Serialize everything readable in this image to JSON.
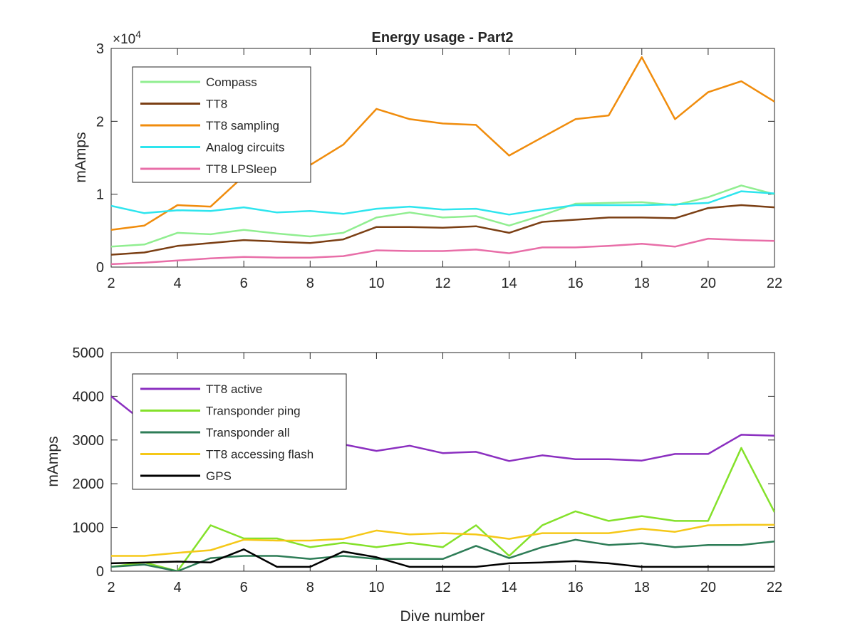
{
  "chart_data": [
    {
      "type": "line",
      "title": "Energy usage - Part2",
      "xlabel": "",
      "ylabel": "mAmps",
      "xlim": [
        2,
        22
      ],
      "ylim": [
        0,
        30000
      ],
      "xticks": [
        2,
        4,
        6,
        8,
        10,
        12,
        14,
        16,
        18,
        20,
        22
      ],
      "yticks": [
        0,
        10000,
        20000,
        30000
      ],
      "ytick_labels": [
        "0",
        "1",
        "2",
        "3"
      ],
      "y_multiplier": {
        "base": "×10",
        "exponent": "4"
      },
      "grid": false,
      "legend_position": "top-left",
      "x": [
        2,
        3,
        4,
        5,
        6,
        7,
        8,
        9,
        10,
        11,
        12,
        13,
        14,
        15,
        16,
        17,
        18,
        19,
        20,
        21,
        22
      ],
      "series": [
        {
          "name": "Compass",
          "color": "#90ee90",
          "values": [
            2800,
            3100,
            4700,
            4500,
            5100,
            4600,
            4200,
            4700,
            6800,
            7500,
            6800,
            7000,
            5700,
            7100,
            8700,
            8800,
            8900,
            8500,
            9600,
            11200,
            10000
          ]
        },
        {
          "name": "TT8",
          "color": "#7b3f14",
          "values": [
            1700,
            2000,
            2900,
            3300,
            3700,
            3500,
            3300,
            3800,
            5500,
            5500,
            5400,
            5600,
            4700,
            6200,
            6500,
            6800,
            6800,
            6700,
            8100,
            8500,
            8200
          ]
        },
        {
          "name": "TT8 sampling",
          "color": "#f08c0c",
          "values": [
            5100,
            5700,
            8500,
            8300,
            12500,
            13000,
            14000,
            16800,
            21700,
            20300,
            19700,
            19500,
            15300,
            17800,
            20300,
            20800,
            28800,
            20300,
            24000,
            25500,
            22700
          ]
        },
        {
          "name": "Analog circuits",
          "color": "#2ee5ee",
          "values": [
            8400,
            7400,
            7800,
            7700,
            8200,
            7500,
            7700,
            7300,
            8000,
            8300,
            7900,
            8000,
            7200,
            7900,
            8500,
            8500,
            8500,
            8600,
            8800,
            10400,
            10100
          ]
        },
        {
          "name": "TT8 LPSleep",
          "color": "#e86ea8",
          "values": [
            400,
            600,
            900,
            1200,
            1400,
            1300,
            1300,
            1500,
            2300,
            2200,
            2200,
            2400,
            1900,
            2700,
            2700,
            2900,
            3200,
            2800,
            3900,
            3700,
            3600
          ]
        }
      ]
    },
    {
      "type": "line",
      "title": "",
      "xlabel": "Dive number",
      "ylabel": "mAmps",
      "xlim": [
        2,
        22
      ],
      "ylim": [
        0,
        5000
      ],
      "xticks": [
        2,
        4,
        6,
        8,
        10,
        12,
        14,
        16,
        18,
        20,
        22
      ],
      "yticks": [
        0,
        1000,
        2000,
        3000,
        4000,
        5000
      ],
      "ytick_labels": [
        "0",
        "1000",
        "2000",
        "3000",
        "4000",
        "5000"
      ],
      "grid": false,
      "legend_position": "top-left",
      "x": [
        2,
        3,
        4,
        5,
        6,
        7,
        8,
        9,
        10,
        11,
        12,
        13,
        14,
        15,
        16,
        17,
        18,
        19,
        20,
        21,
        22
      ],
      "series": [
        {
          "name": "TT8 active",
          "color": "#8b2fc0",
          "values": [
            4000,
            3400,
            3300,
            3200,
            3150,
            3100,
            3000,
            2900,
            2750,
            2870,
            2700,
            2730,
            2520,
            2650,
            2560,
            2560,
            2530,
            2680,
            2680,
            3120,
            3100
          ]
        },
        {
          "name": "Transponder ping",
          "color": "#84e12a",
          "values": [
            100,
            200,
            0,
            1050,
            750,
            750,
            550,
            650,
            550,
            650,
            550,
            1050,
            350,
            1050,
            1370,
            1150,
            1260,
            1150,
            1150,
            2820,
            1350
          ]
        },
        {
          "name": "Transponder all",
          "color": "#2e7d57",
          "values": [
            100,
            150,
            0,
            300,
            350,
            350,
            280,
            350,
            280,
            280,
            280,
            580,
            300,
            550,
            720,
            600,
            640,
            550,
            600,
            600,
            680
          ]
        },
        {
          "name": "TT8 accessing flash",
          "color": "#f5c818",
          "values": [
            350,
            350,
            420,
            480,
            720,
            700,
            700,
            740,
            930,
            840,
            870,
            840,
            740,
            870,
            870,
            870,
            970,
            900,
            1050,
            1060,
            1060
          ]
        },
        {
          "name": "GPS",
          "color": "#000000",
          "values": [
            180,
            200,
            220,
            200,
            500,
            100,
            100,
            450,
            320,
            100,
            100,
            100,
            180,
            200,
            230,
            180,
            100,
            100,
            100,
            100,
            100
          ]
        }
      ]
    }
  ]
}
